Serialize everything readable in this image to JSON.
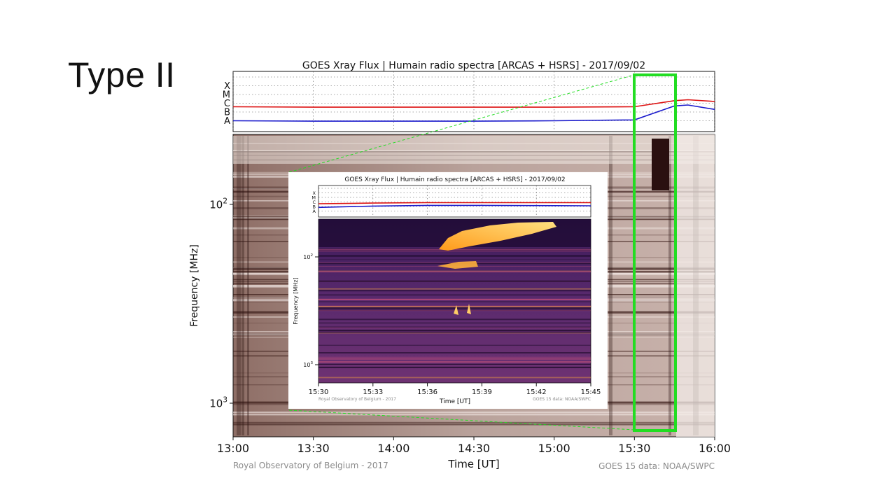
{
  "slide": {
    "title": "Type II"
  },
  "chart_data": [
    {
      "type": "line",
      "title": "GOES Xray Flux | Humain radio spectra [ARCAS + HSRS] - 2017/09/02",
      "xlabel": "Time [UT]",
      "ylabel": "Frequency [MHz]",
      "x_ticks": [
        "13:00",
        "13:30",
        "14:00",
        "14:30",
        "15:00",
        "15:30",
        "16:00"
      ],
      "y_ticks": [
        "10^2",
        "10^3"
      ],
      "xray_classes": [
        "X",
        "M",
        "C",
        "B",
        "A"
      ],
      "x_minutes_from_1300": [
        0,
        30,
        60,
        90,
        120,
        150,
        165,
        170,
        180
      ],
      "series": [
        {
          "values": [
            2.6,
            2.55,
            2.55,
            2.55,
            2.55,
            2.6,
            3.3,
            3.4,
            3.2
          ],
          "color": "#dd1111"
        },
        {
          "values": [
            1.0,
            0.95,
            0.95,
            0.95,
            1.0,
            1.1,
            2.7,
            2.8,
            2.3
          ],
          "color": "#1a1acc"
        }
      ],
      "highlight_color": "#22dd22",
      "footer_left": "Royal Observatory of Belgium - 2017",
      "footer_right": "GOES 15 data: NOAA/SWPC"
    },
    {
      "type": "heatmap",
      "title": "GOES Xray Flux | Humain radio spectra [ARCAS + HSRS] - 2017/09/02",
      "xlabel": "Time [UT]",
      "ylabel": "Frequency [MHz]",
      "x_ticks": [
        "15:30",
        "15:33",
        "15:36",
        "15:39",
        "15:42",
        "15:45"
      ],
      "y_ticks": [
        "10^2",
        "10^3"
      ],
      "xray_classes": [
        "X",
        "M",
        "C",
        "B",
        "A"
      ],
      "x_minutes_from_1530": [
        0,
        3,
        6,
        9,
        12,
        15
      ],
      "series": [
        {
          "values": [
            2.6,
            2.75,
            2.85,
            2.85,
            2.85,
            2.85
          ],
          "color": "#dd1111"
        },
        {
          "values": [
            1.8,
            2.1,
            2.25,
            2.25,
            2.2,
            2.15
          ],
          "color": "#1a1acc"
        }
      ],
      "footer_left": "Royal Observatory of Belgium - 2017",
      "footer_right": "GOES 15 data: NOAA/SWPC"
    }
  ]
}
